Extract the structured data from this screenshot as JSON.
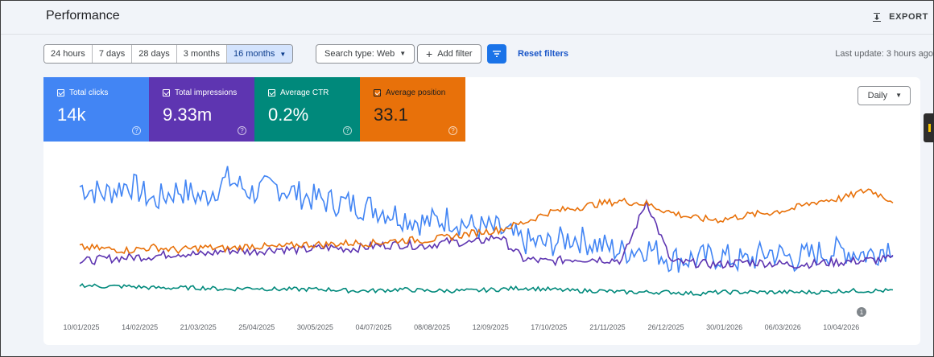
{
  "header": {
    "title": "Performance",
    "export_label": "EXPORT",
    "export_icon": "download-icon"
  },
  "toolbar": {
    "ranges": [
      "24 hours",
      "7 days",
      "28 days",
      "3 months",
      "16 months"
    ],
    "active_range": "16 months",
    "search_type": "Search type: Web",
    "add_filter": "Add filter",
    "reset_filters": "Reset filters",
    "last_update": "Last update: 3 hours ago"
  },
  "metrics": [
    {
      "label": "Total clicks",
      "value": "14k",
      "color": "#4285f4",
      "checked": true
    },
    {
      "label": "Total impressions",
      "value": "9.33m",
      "color": "#5e35b1",
      "checked": true
    },
    {
      "label": "Average CTR",
      "value": "0.2%",
      "color": "#00897b",
      "checked": true
    },
    {
      "label": "Average position",
      "value": "33.1",
      "color": "#e8710a",
      "checked": true
    }
  ],
  "granularity": "Daily",
  "chart_data": {
    "type": "line",
    "x_labels": [
      "10/01/2025",
      "14/02/2025",
      "21/03/2025",
      "25/04/2025",
      "30/05/2025",
      "04/07/2025",
      "08/08/2025",
      "12/09/2025",
      "17/10/2025",
      "21/11/2025",
      "26/12/2025",
      "30/01/2026",
      "06/03/2026",
      "10/04/2026"
    ],
    "annotation": "1",
    "series": [
      {
        "name": "Total clicks",
        "color": "#4285f4",
        "values": [
          0.8,
          0.75,
          0.82,
          0.7,
          0.78,
          0.72,
          0.85,
          0.76,
          0.8,
          0.74,
          0.7,
          0.68,
          0.65,
          0.6,
          0.55,
          0.58,
          0.52,
          0.5,
          0.42,
          0.4,
          0.45,
          0.4,
          0.35,
          0.38,
          0.3,
          0.3,
          0.32,
          0.28,
          0.35,
          0.3,
          0.34,
          0.36,
          0.33,
          0.4
        ]
      },
      {
        "name": "Total impressions",
        "color": "#5e35b1",
        "values": [
          0.28,
          0.3,
          0.31,
          0.32,
          0.34,
          0.33,
          0.36,
          0.35,
          0.37,
          0.36,
          0.38,
          0.37,
          0.39,
          0.4,
          0.39,
          0.42,
          0.41,
          0.46,
          0.3,
          0.28,
          0.3,
          0.3,
          0.29,
          0.7,
          0.28,
          0.27,
          0.26,
          0.28,
          0.27,
          0.26,
          0.27,
          0.28,
          0.29,
          0.3
        ]
      },
      {
        "name": "Average CTR",
        "color": "#00897b",
        "values": [
          0.12,
          0.11,
          0.11,
          0.1,
          0.1,
          0.1,
          0.09,
          0.1,
          0.09,
          0.09,
          0.09,
          0.08,
          0.08,
          0.09,
          0.08,
          0.08,
          0.08,
          0.09,
          0.1,
          0.09,
          0.08,
          0.08,
          0.07,
          0.07,
          0.07,
          0.06,
          0.07,
          0.07,
          0.07,
          0.07,
          0.07,
          0.08,
          0.08,
          0.08
        ]
      },
      {
        "name": "Average position",
        "color": "#e8710a",
        "values": [
          0.38,
          0.37,
          0.36,
          0.38,
          0.36,
          0.38,
          0.37,
          0.39,
          0.38,
          0.4,
          0.4,
          0.41,
          0.41,
          0.43,
          0.43,
          0.45,
          0.48,
          0.5,
          0.55,
          0.62,
          0.65,
          0.68,
          0.7,
          0.68,
          0.62,
          0.58,
          0.57,
          0.6,
          0.62,
          0.65,
          0.7,
          0.72,
          0.78,
          0.7
        ]
      }
    ]
  }
}
